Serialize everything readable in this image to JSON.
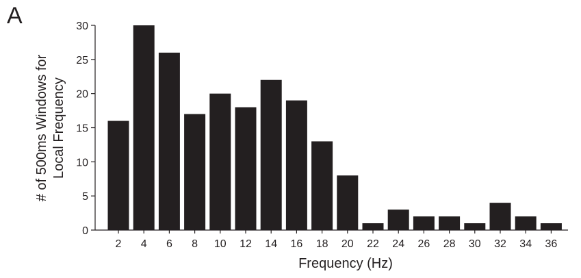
{
  "panel_label": "A",
  "chart_data": {
    "type": "bar",
    "categories": [
      "2",
      "4",
      "6",
      "8",
      "10",
      "12",
      "14",
      "16",
      "18",
      "20",
      "22",
      "24",
      "26",
      "28",
      "30",
      "32",
      "34",
      "36"
    ],
    "values": [
      16,
      30,
      26,
      17,
      20,
      18,
      22,
      19,
      13,
      8,
      1,
      3,
      2,
      2,
      1,
      4,
      2,
      1
    ],
    "title": "",
    "xlabel": "Frequency (Hz)",
    "ylabel_lines": [
      "# of 500ms Windows for",
      "Local Frequency"
    ],
    "ylim": [
      0,
      30
    ],
    "yticks": [
      0,
      5,
      10,
      15,
      20,
      25,
      30
    ],
    "bar_color": "#231f20",
    "grid": false,
    "legend": "none"
  }
}
